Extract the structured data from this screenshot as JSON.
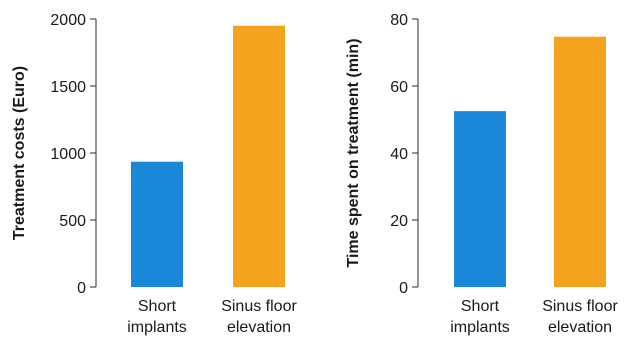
{
  "chart_data": [
    {
      "type": "bar",
      "categories": [
        [
          "Short",
          "implants"
        ],
        [
          "Sinus floor",
          "elevation"
        ]
      ],
      "values": [
        935,
        1950
      ],
      "colors": [
        "#1b87d8",
        "#f5a21c"
      ],
      "title": "",
      "xlabel": "",
      "ylabel": "Treatment costs (Euro)",
      "ylim": [
        0,
        2000
      ],
      "yticks": [
        0,
        500,
        1000,
        1500,
        2000
      ],
      "grid": false
    },
    {
      "type": "bar",
      "categories": [
        [
          "Short",
          "implants"
        ],
        [
          "Sinus floor",
          "elevation"
        ]
      ],
      "values": [
        52.5,
        74.7
      ],
      "colors": [
        "#1b87d8",
        "#f5a21c"
      ],
      "title": "",
      "xlabel": "",
      "ylabel": "Time spent on treatment (min)",
      "ylim": [
        0,
        80
      ],
      "yticks": [
        0,
        20,
        40,
        60,
        80
      ],
      "grid": false
    }
  ]
}
